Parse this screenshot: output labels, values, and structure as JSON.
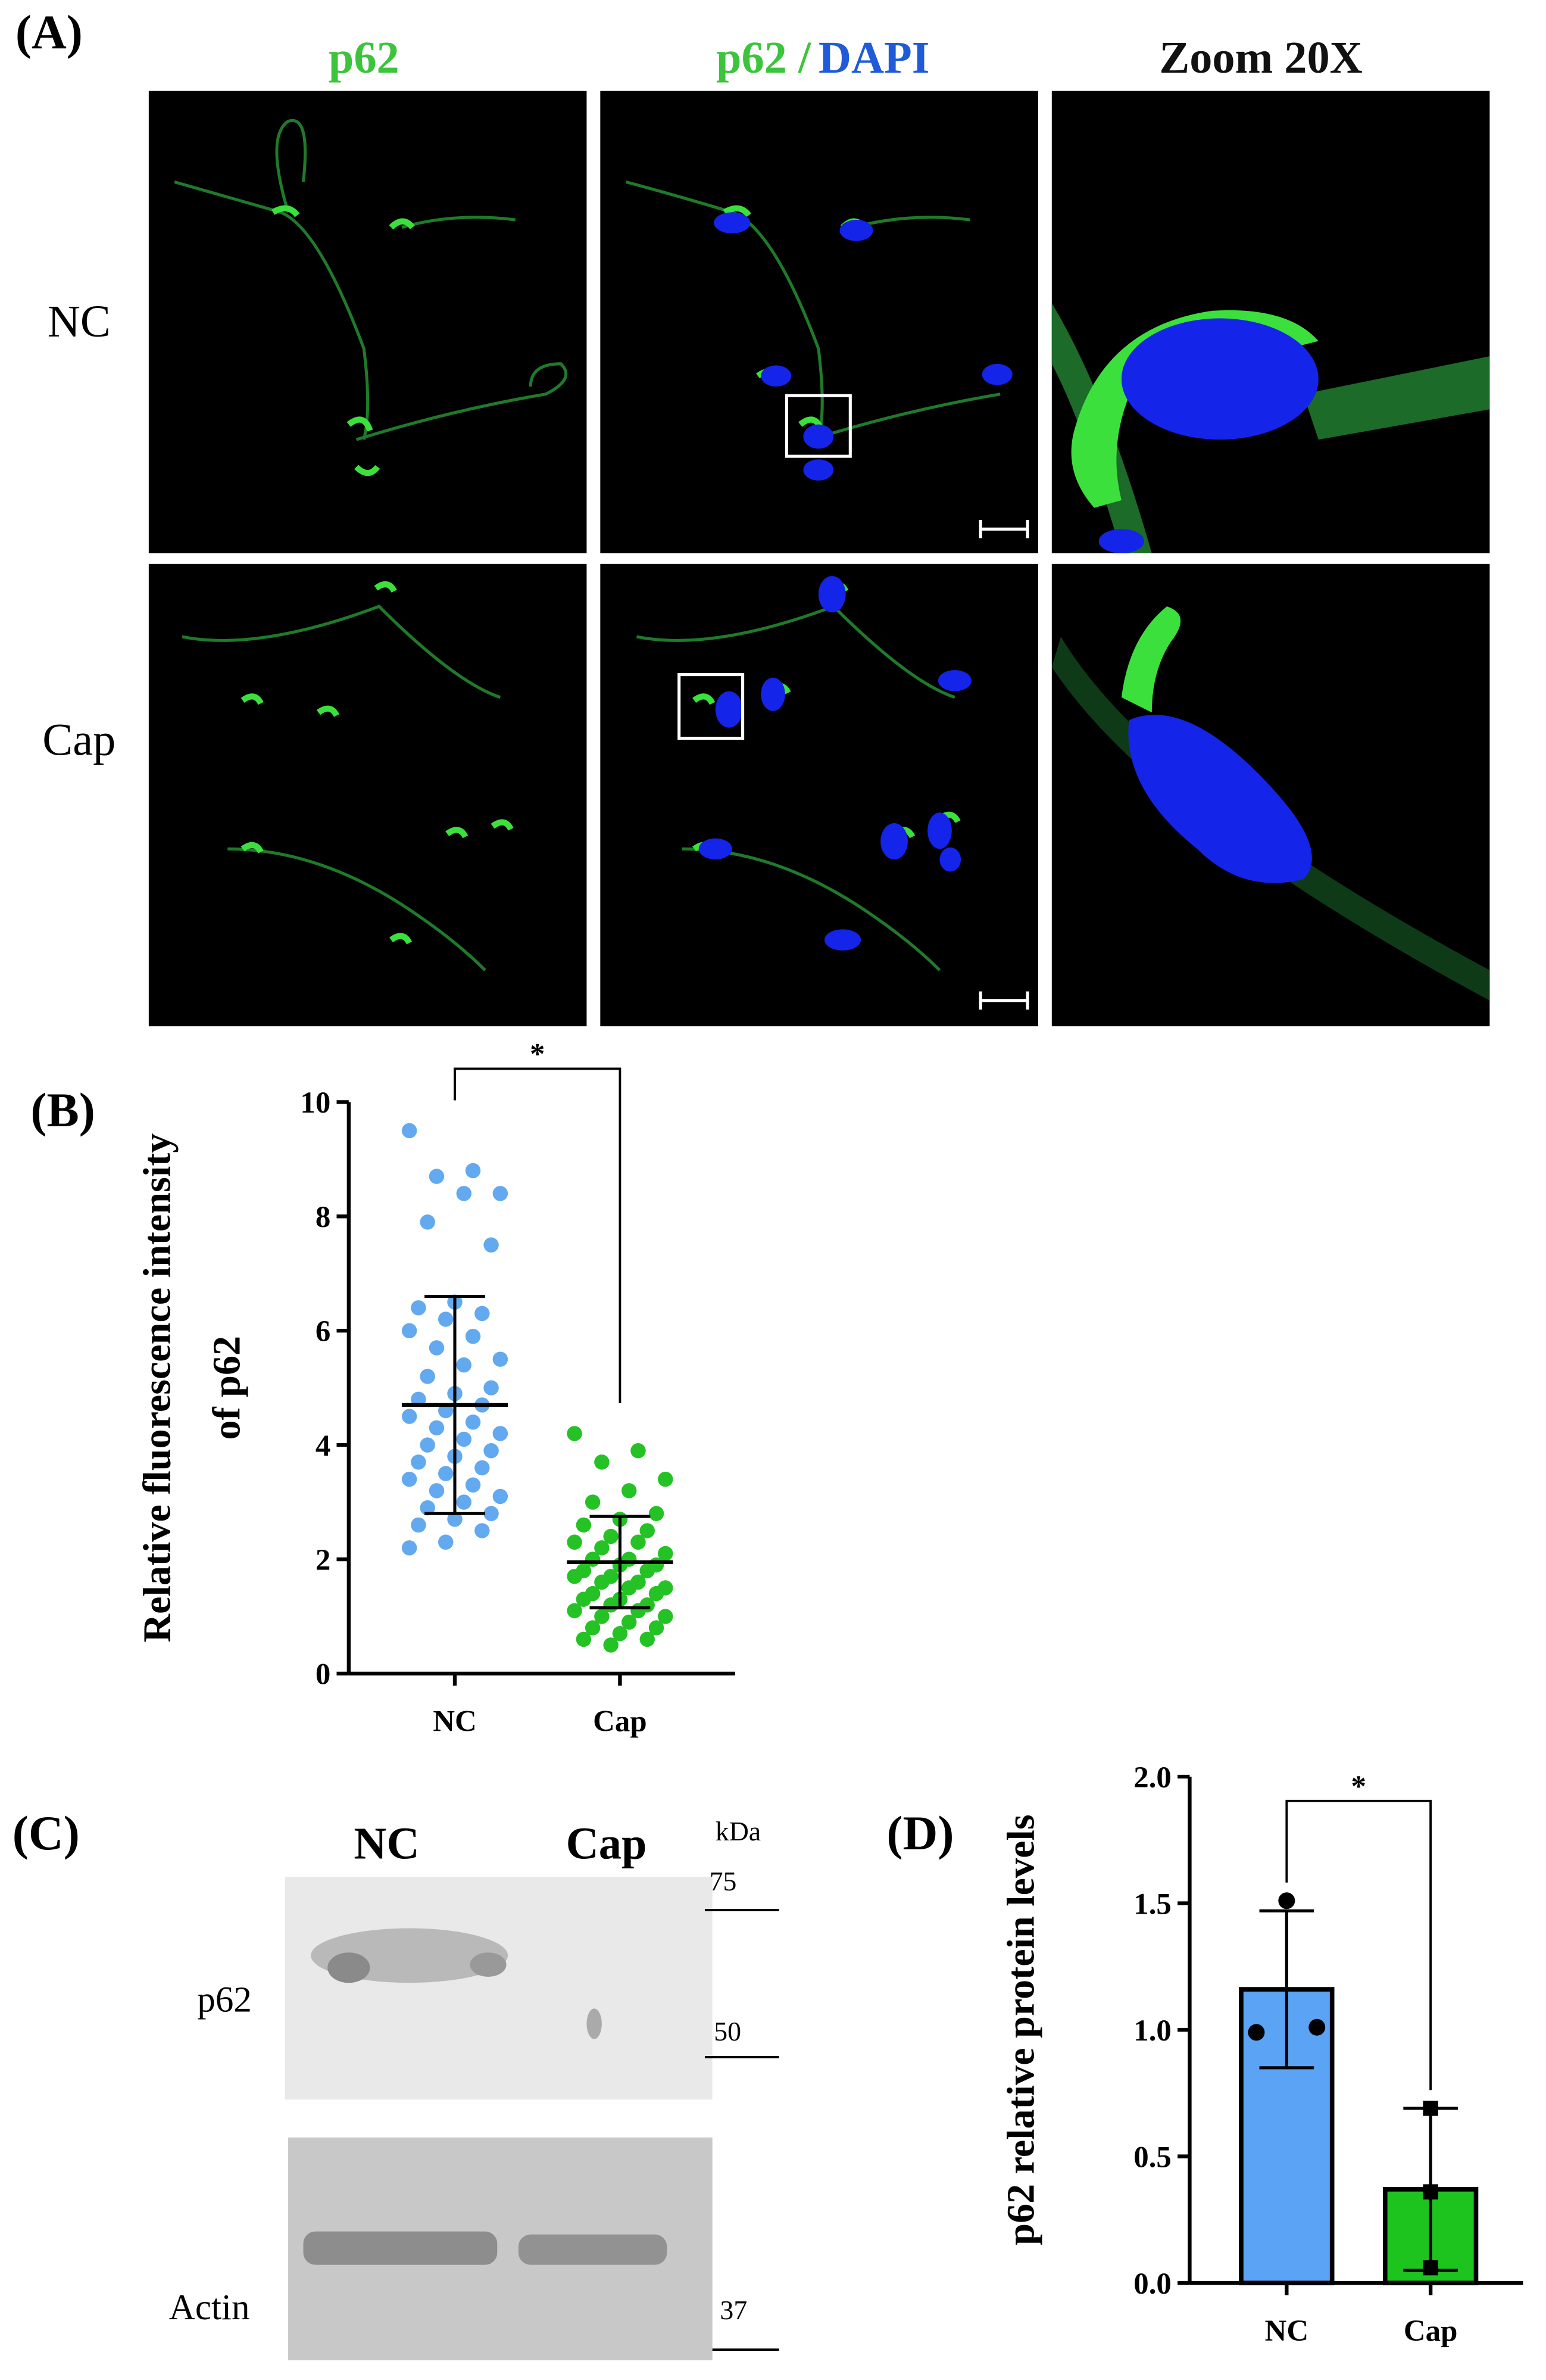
{
  "panels": {
    "a": {
      "label": "(A)",
      "headers": [
        "p62",
        "p62 /",
        "DAPI",
        "Zoom 20X"
      ],
      "rows": [
        "NC",
        "Cap"
      ]
    },
    "b": {
      "label": "(B)"
    },
    "c": {
      "label": "(C)",
      "lanes": [
        "NC",
        "Cap"
      ],
      "unit": "kDa",
      "bands": [
        "p62",
        "Actin"
      ],
      "markers": [
        "75",
        "50",
        "37"
      ]
    },
    "d": {
      "label": "(D)"
    }
  },
  "chart_data": [
    {
      "type": "dotplot",
      "ylabel": [
        "Relative fluorescence intensity",
        "of p62"
      ],
      "categories": [
        "NC",
        "Cap"
      ],
      "colors": [
        "#62a9ef",
        "#25c225"
      ],
      "values": [
        [
          9.5,
          8.8,
          8.7,
          8.4,
          8.4,
          7.9,
          7.5,
          6.5,
          6.4,
          6.3,
          6.2,
          6.0,
          5.9,
          5.7,
          5.5,
          5.4,
          5.2,
          5.0,
          4.9,
          4.8,
          4.7,
          4.6,
          4.5,
          4.4,
          4.3,
          4.2,
          4.1,
          4.0,
          3.9,
          3.8,
          3.7,
          3.6,
          3.5,
          3.4,
          3.3,
          3.2,
          3.1,
          3.0,
          2.9,
          2.8,
          2.7,
          2.6,
          2.5,
          2.3,
          2.2
        ],
        [
          4.2,
          3.9,
          3.7,
          3.4,
          3.2,
          3.0,
          2.8,
          2.7,
          2.6,
          2.5,
          2.4,
          2.3,
          2.3,
          2.2,
          2.1,
          2.0,
          2.0,
          1.9,
          1.9,
          1.8,
          1.8,
          1.7,
          1.7,
          1.6,
          1.6,
          1.5,
          1.5,
          1.4,
          1.4,
          1.3,
          1.3,
          1.2,
          1.2,
          1.1,
          1.1,
          1.0,
          1.0,
          0.9,
          0.8,
          0.8,
          0.7,
          0.6,
          0.6,
          0.5
        ]
      ],
      "means": [
        4.7,
        1.95
      ],
      "errors": [
        1.9,
        0.8
      ],
      "significance": "*",
      "ylim": [
        0,
        10
      ],
      "yticks": [
        0,
        2,
        4,
        6,
        8,
        10
      ]
    },
    {
      "type": "bar",
      "ylabel": "p62 relative protein levels",
      "categories": [
        "NC",
        "Cap"
      ],
      "colors": [
        "#5ba3f5",
        "#1ec41e"
      ],
      "values": [
        1.16,
        0.37
      ],
      "errors": [
        0.31,
        0.32
      ],
      "points": [
        [
          1.51,
          0.99,
          1.01
        ],
        [
          0.69,
          0.36,
          0.06
        ]
      ],
      "point_markers": [
        "circle",
        "square"
      ],
      "significance": "*",
      "ylim": [
        0,
        2.0
      ],
      "yticks": [
        {
          "value": 0,
          "label": "0.0"
        },
        {
          "value": 0.5,
          "label": "0.5"
        },
        {
          "value": 1,
          "label": "1.0"
        },
        {
          "value": 1.5,
          "label": "1.5"
        },
        {
          "value": 2,
          "label": "2.0"
        }
      ]
    }
  ]
}
